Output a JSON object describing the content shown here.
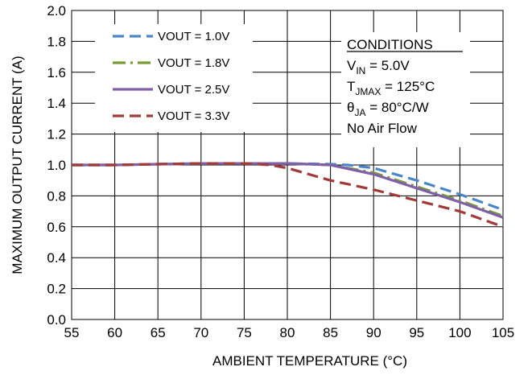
{
  "chart_data": {
    "type": "line",
    "xlabel": "AMBIENT TEMPERATURE (°C)",
    "ylabel": "MAXIMUM OUTPUT  CURRENT (A)",
    "xlim": [
      55,
      105
    ],
    "ylim": [
      0,
      2
    ],
    "xticks": [
      "55",
      "60",
      "65",
      "70",
      "75",
      "80",
      "85",
      "90",
      "95",
      "100",
      "105"
    ],
    "yticks": [
      "0.0",
      "0.2",
      "0.4",
      "0.6",
      "0.8",
      "1.0",
      "1.2",
      "1.4",
      "1.6",
      "1.8",
      "2.0"
    ],
    "grid": "vertical and horizontal",
    "legend_position": "top-left",
    "series": [
      {
        "name": "VOUT = 1.0V",
        "color": "#4a86c8",
        "style": "dashed",
        "x": [
          55,
          60,
          65,
          70,
          75,
          80,
          85,
          87,
          90,
          95,
          100,
          105
        ],
        "y": [
          1.0,
          1.0,
          1.005,
          1.01,
          1.01,
          1.01,
          1.005,
          1.0,
          0.98,
          0.9,
          0.81,
          0.71
        ]
      },
      {
        "name": "VOUT = 1.8V",
        "color": "#7a9a3a",
        "style": "dash-dot",
        "x": [
          55,
          60,
          65,
          70,
          75,
          80,
          85,
          90,
          95,
          100,
          105
        ],
        "y": [
          1.0,
          1.0,
          1.005,
          1.01,
          1.01,
          1.01,
          1.0,
          0.95,
          0.86,
          0.77,
          0.67
        ]
      },
      {
        "name": "VOUT = 2.5V",
        "color": "#7f60a8",
        "style": "solid",
        "x": [
          55,
          60,
          65,
          70,
          75,
          80,
          85,
          90,
          95,
          100,
          105
        ],
        "y": [
          1.0,
          1.0,
          1.005,
          1.01,
          1.01,
          1.01,
          1.0,
          0.94,
          0.85,
          0.76,
          0.66
        ]
      },
      {
        "name": "VOUT = 3.3V",
        "color": "#a23a3a",
        "style": "dashed",
        "x": [
          55,
          60,
          65,
          70,
          75,
          78,
          80,
          85,
          90,
          95,
          100,
          105
        ],
        "y": [
          1.0,
          1.0,
          1.005,
          1.01,
          1.01,
          1.0,
          0.98,
          0.9,
          0.84,
          0.77,
          0.7,
          0.6
        ]
      }
    ]
  },
  "conditions": {
    "title": "CONDITIONS",
    "vin_symbol": "V",
    "vin_sub": "IN",
    "vin_value": " = 5.0V",
    "tj_symbol": "T",
    "tj_sub": "JMAX",
    "tj_value": " = 125°C",
    "theta_symbol": "θ",
    "theta_sub": "JA",
    "theta_value": " = 80°C/W",
    "airflow": "No Air Flow"
  }
}
